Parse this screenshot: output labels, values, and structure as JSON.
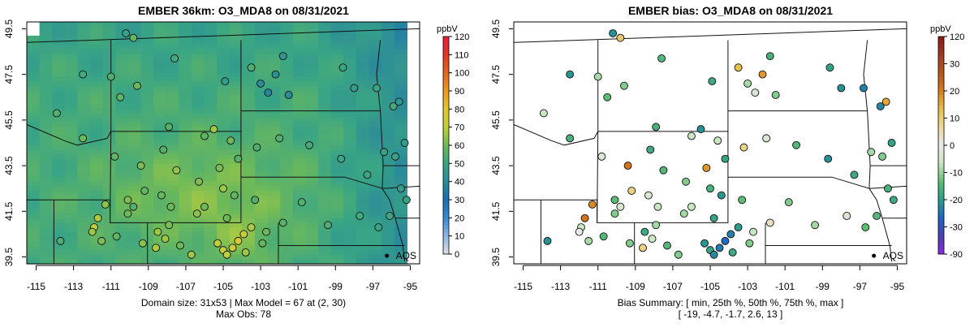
{
  "left": {
    "title": "EMBER 36km: O3_MDA8 on 08/31/2021",
    "caption_line1": "Domain size: 31x53 | Max Model = 67 at (2, 30)",
    "caption_line2": "Max Obs: 78",
    "colorbar_unit": "ppbV",
    "colorbar_ticks": [
      "0",
      "10",
      "20",
      "30",
      "40",
      "50",
      "60",
      "70",
      "80",
      "90",
      "100",
      "110",
      "120"
    ],
    "location_label": "AQS"
  },
  "right": {
    "title": "EMBER bias: O3_MDA8 on 08/31/2021",
    "caption_line1": "Bias Summary: [ min, 25th %, 50th %, 75th %, max ]",
    "caption_line2": "[ -19,  -4.7,  -1.7,  2.6,  13 ]",
    "colorbar_unit": "ppbV",
    "colorbar_ticks": [
      "-90",
      "-30",
      "-20",
      "-10",
      "0",
      "10",
      "20",
      "30",
      "120"
    ],
    "location_label": "AQS"
  },
  "axes": {
    "lon_ticks": [
      "-115",
      "-113",
      "-111",
      "-109",
      "-107",
      "-105",
      "-103",
      "-101",
      "-99",
      "-97",
      "-95"
    ],
    "lat_ticks": [
      "39.5",
      "41.5",
      "43.5",
      "45.5",
      "47.5",
      "49.5"
    ],
    "lon_range": [
      -115.5,
      -94.5
    ],
    "lat_range": [
      39.2,
      49.8
    ]
  },
  "colors": {
    "model_scale": [
      "#e0e0e0",
      "#8fb8e6",
      "#3d88d2",
      "#1a6fb0",
      "#2a8b9a",
      "#3aa584",
      "#6cb95a",
      "#bfcf3a",
      "#e3c72e",
      "#ec9a22",
      "#e6651f",
      "#e43528",
      "#ef1a3a"
    ],
    "bias_scale": [
      "#8a2be2",
      "#4a3fb5",
      "#1f64c8",
      "#2a9c8a",
      "#5ebd73",
      "#c8e6c0",
      "#e8e8e8",
      "#ecd9a0",
      "#e8c14a",
      "#d77c1c",
      "#b5561a",
      "#a23a22",
      "#8b1a1a"
    ]
  }
}
